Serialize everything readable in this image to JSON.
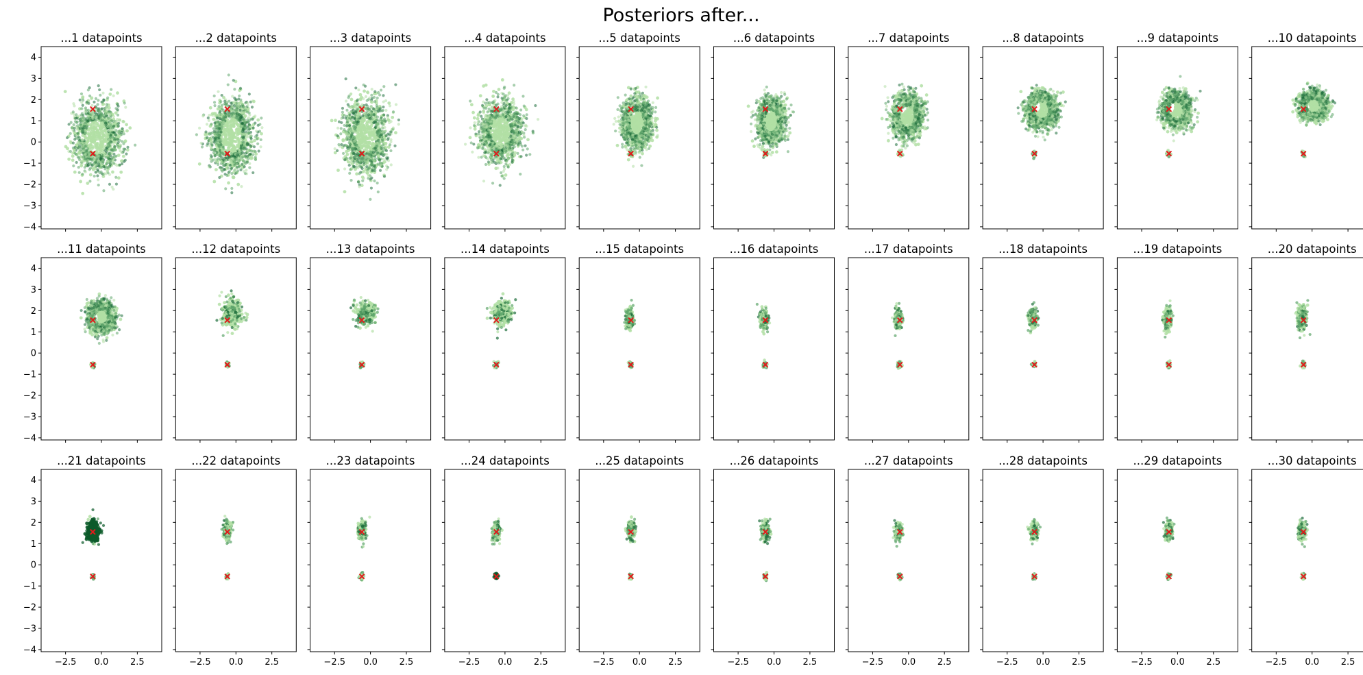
{
  "chart_data": {
    "type": "scatter",
    "title": "Posteriors after...",
    "layout": {
      "rows": 3,
      "cols": 10
    },
    "shared_axes": {
      "xlim": [
        -4.2,
        4.2
      ],
      "ylim": [
        -4.1,
        4.5
      ],
      "xticks": [
        -2.5,
        0.0,
        2.5
      ],
      "xtick_labels": [
        "−2.5",
        "0.0",
        "2.5"
      ],
      "yticks": [
        -4,
        -3,
        -2,
        -1,
        0,
        1,
        2,
        3,
        4
      ],
      "ytick_labels": [
        "−4",
        "−3",
        "−2",
        "−1",
        "0",
        "1",
        "2",
        "3",
        "4"
      ],
      "xlabel": "",
      "ylabel": "",
      "grid": false
    },
    "true_points": [
      {
        "x": -0.6,
        "y": 1.55
      },
      {
        "x": -0.6,
        "y": -0.55
      }
    ],
    "colors": {
      "marker_true": "#e01b1b",
      "light_green": "#b2dfa5",
      "mid_green": "#5ea56b",
      "dark_green": "#1e6e3c",
      "darkest_green": "#0b5a2a"
    },
    "panels": [
      {
        "n": 1,
        "title": "...1 datapoints",
        "center": [
          -0.3,
          0.2
        ],
        "spread": [
          1.45,
          1.5
        ],
        "hole": true,
        "lower_blob": false,
        "dark": false
      },
      {
        "n": 2,
        "title": "...2 datapoints",
        "center": [
          -0.3,
          0.3
        ],
        "spread": [
          1.35,
          1.55
        ],
        "hole": true,
        "lower_blob": false,
        "dark": false
      },
      {
        "n": 3,
        "title": "...3 datapoints",
        "center": [
          -0.3,
          0.3
        ],
        "spread": [
          1.35,
          1.5
        ],
        "hole": true,
        "lower_blob": false,
        "dark": false
      },
      {
        "n": 4,
        "title": "...4 datapoints",
        "center": [
          -0.3,
          0.5
        ],
        "spread": [
          1.3,
          1.3
        ],
        "hole": true,
        "lower_blob": false,
        "dark": false
      },
      {
        "n": 5,
        "title": "...5 datapoints",
        "center": [
          -0.2,
          0.9
        ],
        "spread": [
          0.9,
          1.05
        ],
        "hole": true,
        "lower_blob": true,
        "dark": false
      },
      {
        "n": 6,
        "title": "...6 datapoints",
        "center": [
          -0.2,
          1.0
        ],
        "spread": [
          0.85,
          0.95
        ],
        "hole": true,
        "lower_blob": true,
        "dark": false
      },
      {
        "n": 7,
        "title": "...7 datapoints",
        "center": [
          -0.1,
          1.2
        ],
        "spread": [
          0.95,
          0.9
        ],
        "hole": true,
        "lower_blob": true,
        "dark": false
      },
      {
        "n": 8,
        "title": "...8 datapoints",
        "center": [
          -0.1,
          1.5
        ],
        "spread": [
          0.95,
          0.75
        ],
        "hole": true,
        "lower_blob": true,
        "dark": false
      },
      {
        "n": 9,
        "title": "...9 datapoints",
        "center": [
          -0.1,
          1.5
        ],
        "spread": [
          0.9,
          0.75
        ],
        "hole": true,
        "lower_blob": true,
        "dark": false
      },
      {
        "n": 10,
        "title": "...10 datapoints",
        "center": [
          0.1,
          1.7
        ],
        "spread": [
          0.85,
          0.6
        ],
        "hole": true,
        "lower_blob": true,
        "dark": false
      },
      {
        "n": 11,
        "title": "...11 datapoints",
        "center": [
          0.0,
          1.7
        ],
        "spread": [
          0.8,
          0.65
        ],
        "hole": true,
        "lower_blob": true,
        "dark": false
      },
      {
        "n": 12,
        "title": "...12 datapoints",
        "center": [
          -0.3,
          1.9
        ],
        "spread": [
          0.65,
          0.55
        ],
        "hole": false,
        "lower_blob": true,
        "dark": false
      },
      {
        "n": 13,
        "title": "...13 datapoints",
        "center": [
          -0.3,
          1.9
        ],
        "spread": [
          0.55,
          0.45
        ],
        "hole": false,
        "lower_blob": true,
        "dark": false
      },
      {
        "n": 14,
        "title": "...14 datapoints",
        "center": [
          -0.2,
          1.9
        ],
        "spread": [
          0.55,
          0.45
        ],
        "hole": false,
        "lower_blob": true,
        "dark": false
      },
      {
        "n": 15,
        "title": "...15 datapoints",
        "center": [
          -0.7,
          1.6
        ],
        "spread": [
          0.2,
          0.35
        ],
        "hole": false,
        "lower_blob": true,
        "dark": false
      },
      {
        "n": 16,
        "title": "...16 datapoints",
        "center": [
          -0.7,
          1.6
        ],
        "spread": [
          0.2,
          0.35
        ],
        "hole": false,
        "lower_blob": true,
        "dark": false
      },
      {
        "n": 17,
        "title": "...17 datapoints",
        "center": [
          -0.7,
          1.6
        ],
        "spread": [
          0.2,
          0.35
        ],
        "hole": false,
        "lower_blob": true,
        "dark": false
      },
      {
        "n": 18,
        "title": "...18 datapoints",
        "center": [
          -0.7,
          1.6
        ],
        "spread": [
          0.2,
          0.35
        ],
        "hole": false,
        "lower_blob": true,
        "dark": false
      },
      {
        "n": 19,
        "title": "...19 datapoints",
        "center": [
          -0.7,
          1.6
        ],
        "spread": [
          0.2,
          0.35
        ],
        "hole": false,
        "lower_blob": true,
        "dark": false
      },
      {
        "n": 20,
        "title": "...20 datapoints",
        "center": [
          -0.7,
          1.7
        ],
        "spread": [
          0.25,
          0.45
        ],
        "hole": false,
        "lower_blob": true,
        "dark": false
      },
      {
        "n": 21,
        "title": "...21 datapoints",
        "center": [
          -0.6,
          1.6
        ],
        "spread": [
          0.3,
          0.35
        ],
        "hole": false,
        "lower_blob": true,
        "dark": true
      },
      {
        "n": 22,
        "title": "...22 datapoints",
        "center": [
          -0.6,
          1.6
        ],
        "spread": [
          0.2,
          0.3
        ],
        "hole": false,
        "lower_blob": true,
        "dark": false
      },
      {
        "n": 23,
        "title": "...23 datapoints",
        "center": [
          -0.6,
          1.6
        ],
        "spread": [
          0.2,
          0.3
        ],
        "hole": false,
        "lower_blob": true,
        "dark": false
      },
      {
        "n": 24,
        "title": "...24 datapoints",
        "center": [
          -0.6,
          1.55
        ],
        "spread": [
          0.2,
          0.3
        ],
        "hole": false,
        "lower_blob": true,
        "dark": false,
        "dark_lower": true
      },
      {
        "n": 25,
        "title": "...25 datapoints",
        "center": [
          -0.6,
          1.6
        ],
        "spread": [
          0.2,
          0.3
        ],
        "hole": false,
        "lower_blob": true,
        "dark": false
      },
      {
        "n": 26,
        "title": "...26 datapoints",
        "center": [
          -0.6,
          1.6
        ],
        "spread": [
          0.2,
          0.3
        ],
        "hole": false,
        "lower_blob": true,
        "dark": false
      },
      {
        "n": 27,
        "title": "...27 datapoints",
        "center": [
          -0.7,
          1.55
        ],
        "spread": [
          0.2,
          0.3
        ],
        "hole": false,
        "lower_blob": true,
        "dark": false
      },
      {
        "n": 28,
        "title": "...28 datapoints",
        "center": [
          -0.6,
          1.6
        ],
        "spread": [
          0.2,
          0.3
        ],
        "hole": false,
        "lower_blob": true,
        "dark": false
      },
      {
        "n": 29,
        "title": "...29 datapoints",
        "center": [
          -0.6,
          1.6
        ],
        "spread": [
          0.2,
          0.3
        ],
        "hole": false,
        "lower_blob": true,
        "dark": false
      },
      {
        "n": 30,
        "title": "...30 datapoints",
        "center": [
          -0.7,
          1.6
        ],
        "spread": [
          0.2,
          0.3
        ],
        "hole": false,
        "lower_blob": true,
        "dark": false
      }
    ]
  }
}
